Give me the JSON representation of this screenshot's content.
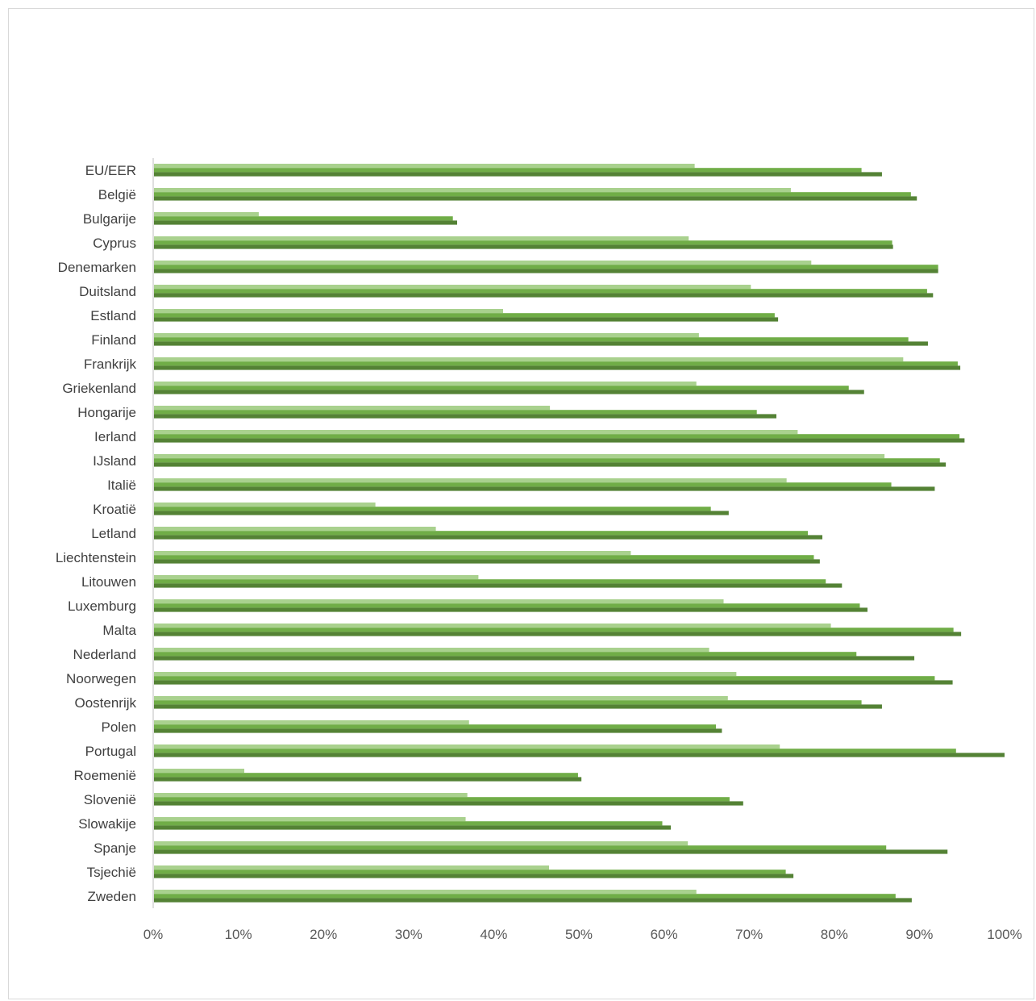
{
  "chart_data": {
    "type": "bar",
    "orientation": "horizontal",
    "title": "",
    "xlabel": "",
    "ylabel": "",
    "xlim": [
      0,
      100
    ],
    "x_ticks": [
      "0%",
      "10%",
      "20%",
      "30%",
      "40%",
      "50%",
      "60%",
      "70%",
      "80%",
      "90%",
      "100%"
    ],
    "grid": false,
    "legend": "none",
    "categories": [
      "EU/EER",
      "België",
      "Bulgarije",
      "Cyprus",
      "Denemarken",
      "Duitsland",
      "Estland",
      "Finland",
      "Frankrijk",
      "Griekenland",
      "Hongarije",
      "Ierland",
      "IJsland",
      "Italië",
      "Kroatië",
      "Letland",
      "Liechtenstein",
      "Litouwen",
      "Luxemburg",
      "Malta",
      "Nederland",
      "Noorwegen",
      "Oostenrijk",
      "Polen",
      "Portugal",
      "Roemenië",
      "Slovenië",
      "Slowakije",
      "Spanje",
      "Tsjechië",
      "Zweden"
    ],
    "series": [
      {
        "color": "#a9d18e",
        "values": [
          63.6,
          74.9,
          12.4,
          62.9,
          77.3,
          70.2,
          41.1,
          64.1,
          88.1,
          63.8,
          46.6,
          75.7,
          85.9,
          74.4,
          26.1,
          33.2,
          56.1,
          38.2,
          67.0,
          79.6,
          65.3,
          68.5,
          67.5,
          37.1,
          73.6,
          10.7,
          36.9,
          36.7,
          62.8,
          46.5,
          63.8
        ]
      },
      {
        "color": "#70ad47",
        "values": [
          83.2,
          89.0,
          35.2,
          86.8,
          92.2,
          90.9,
          73.0,
          88.7,
          94.5,
          81.7,
          70.9,
          94.7,
          92.4,
          86.7,
          65.5,
          76.9,
          77.6,
          79.0,
          83.0,
          94.0,
          82.6,
          91.8,
          83.2,
          66.1,
          94.3,
          49.9,
          67.7,
          59.8,
          86.1,
          74.3,
          87.2
        ]
      },
      {
        "color": "#548235",
        "values": [
          85.6,
          89.7,
          35.7,
          86.9,
          92.2,
          91.6,
          73.4,
          91.0,
          94.8,
          83.5,
          73.2,
          95.3,
          93.1,
          91.8,
          67.6,
          78.6,
          78.3,
          80.9,
          83.9,
          94.9,
          89.4,
          93.9,
          85.6,
          66.8,
          100.0,
          50.3,
          69.3,
          60.8,
          93.3,
          75.2,
          89.1
        ]
      }
    ]
  }
}
